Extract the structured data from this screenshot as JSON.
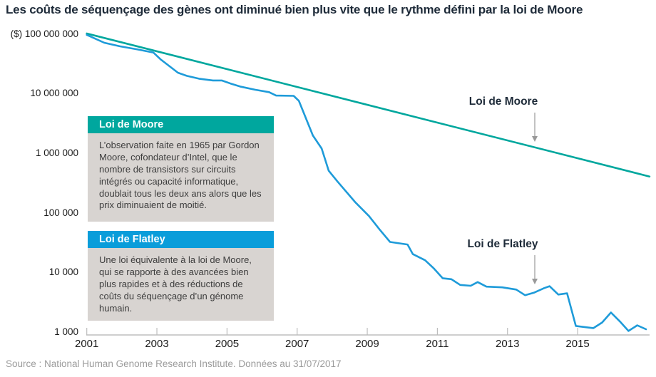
{
  "title": "Les coûts de séquençage des gènes ont diminué bien plus vite que le rythme défini par la loi de Moore",
  "source": "Source : National Human Genome Research Institute. Données au 31/07/2017",
  "colors": {
    "moore_teal": "#00a79e",
    "flatley_blue_header": "#0a9dda",
    "cost_line_blue": "#1e9bd9",
    "box_body_gray": "#d8d4d1",
    "axis_gray": "#bdbdbd",
    "arrow_gray": "#999999",
    "title_dark": "#1e2b39"
  },
  "legend_boxes": [
    {
      "title": "Loi de Moore",
      "body": "L’observation faite en 1965 par Gordon Moore, cofondateur d’Intel, que le nombre de transistors sur circuits intégrés ou capacité informa­tique, doublait tous les deux ans alors que les prix diminuaient de moitié."
    },
    {
      "title": "Loi de Flatley",
      "body": "Une loi équivalente à la loi de Moore, qui se rapporte à des avancées bien plus rapides et à des réductions de coûts du séquençage d’un génome humain."
    }
  ],
  "annotations": [
    {
      "label": "Loi de Moore"
    },
    {
      "label": "Loi de Flatley"
    }
  ],
  "chart_data": {
    "type": "line",
    "title": "Coût de séquençage d'un génome humain vs loi de Moore",
    "xlabel": "",
    "ylabel": "($)",
    "x_axis": {
      "ticks": [
        2001,
        2003,
        2005,
        2007,
        2009,
        2011,
        2013,
        2015
      ],
      "range": [
        2001,
        2017.05
      ]
    },
    "y_axis": {
      "scale": "log",
      "tick_values": [
        100000000,
        10000000,
        1000000,
        100000,
        10000,
        1000
      ],
      "tick_labels": [
        "($) 100 000 000",
        "10 000 000",
        "1 000 000",
        "100 000",
        "10 000",
        "1 000"
      ],
      "range": [
        1000,
        100000000
      ]
    },
    "grid": false,
    "legend_position": "none",
    "series": [
      {
        "name": "Loi de Moore",
        "color": "#00a79e",
        "points": [
          [
            2001.0,
            100000000
          ],
          [
            2017.05,
            400000
          ]
        ]
      },
      {
        "name": "Coût de séquençage",
        "color": "#1e9bd9",
        "points": [
          [
            2001.0,
            95000000
          ],
          [
            2001.5,
            70000000
          ],
          [
            2001.95,
            61000000
          ],
          [
            2002.45,
            54000000
          ],
          [
            2002.9,
            48000000
          ],
          [
            2003.1,
            37000000
          ],
          [
            2003.6,
            22000000
          ],
          [
            2003.85,
            19500000
          ],
          [
            2004.2,
            17500000
          ],
          [
            2004.6,
            16300000
          ],
          [
            2004.85,
            16300000
          ],
          [
            2005.1,
            14500000
          ],
          [
            2005.4,
            12800000
          ],
          [
            2005.8,
            11400000
          ],
          [
            2006.2,
            10400000
          ],
          [
            2006.4,
            9100000
          ],
          [
            2006.9,
            9000000
          ],
          [
            2007.05,
            7400000
          ],
          [
            2007.45,
            1950000
          ],
          [
            2007.7,
            1180000
          ],
          [
            2007.9,
            500000
          ],
          [
            2008.15,
            330000
          ],
          [
            2008.65,
            150000
          ],
          [
            2009.05,
            87000
          ],
          [
            2009.35,
            52000
          ],
          [
            2009.65,
            32000
          ],
          [
            2010.15,
            29000
          ],
          [
            2010.3,
            20000
          ],
          [
            2010.65,
            15800
          ],
          [
            2010.9,
            11500
          ],
          [
            2011.15,
            7900
          ],
          [
            2011.4,
            7600
          ],
          [
            2011.65,
            6100
          ],
          [
            2011.95,
            5900
          ],
          [
            2012.15,
            6800
          ],
          [
            2012.4,
            5700
          ],
          [
            2012.85,
            5550
          ],
          [
            2013.25,
            5100
          ],
          [
            2013.5,
            4100
          ],
          [
            2013.75,
            4500
          ],
          [
            2014.05,
            5400
          ],
          [
            2014.2,
            5800
          ],
          [
            2014.45,
            4200
          ],
          [
            2014.7,
            4400
          ],
          [
            2014.95,
            1250
          ],
          [
            2015.45,
            1150
          ],
          [
            2015.7,
            1430
          ],
          [
            2015.95,
            2100
          ],
          [
            2016.2,
            1500
          ],
          [
            2016.45,
            1030
          ],
          [
            2016.7,
            1280
          ],
          [
            2016.95,
            1100
          ]
        ]
      }
    ]
  }
}
